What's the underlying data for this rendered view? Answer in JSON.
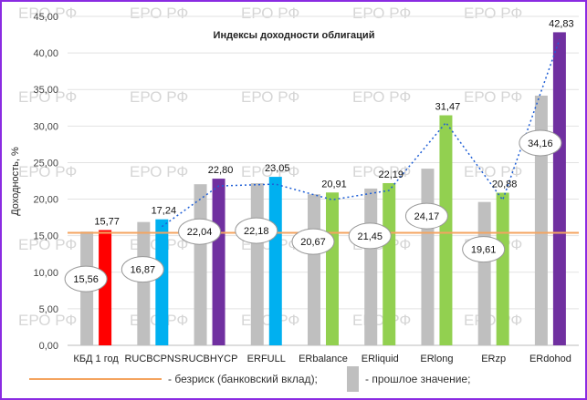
{
  "chart_data": {
    "type": "bar",
    "title": "Индексы доходности облигаций",
    "xlabel": "",
    "ylabel": "Доходность, %",
    "ylim": [
      0,
      45
    ],
    "yticks": [
      "0,00",
      "5,00",
      "10,00",
      "15,00",
      "20,00",
      "25,00",
      "30,00",
      "35,00",
      "40,00",
      "45,00"
    ],
    "categories": [
      "КБД 1 год",
      "RUCBCPNS",
      "RUCBHYCP",
      "ERFULL",
      "ERbalance",
      "ERliquid",
      "ERlong",
      "ERzp",
      "ERdohod"
    ],
    "series": [
      {
        "name": "прошлое значение",
        "values": [
          15.56,
          16.87,
          22.04,
          22.18,
          20.67,
          21.45,
          24.17,
          19.61,
          34.16
        ],
        "labels": [
          "15,56",
          "16,87",
          "22,04",
          "22,18",
          "20,67",
          "21,45",
          "24,17",
          "19,61",
          "34,16"
        ],
        "color": "#bfbfbf"
      },
      {
        "name": "",
        "values": [
          15.77,
          17.24,
          22.8,
          23.05,
          20.91,
          22.19,
          31.47,
          20.88,
          42.83
        ],
        "labels": [
          "15,77",
          "17,24",
          "22,80",
          "23,05",
          "20,91",
          "22,19",
          "31,47",
          "20,88",
          "42,83"
        ],
        "colors": [
          "#ff0000",
          "#00b0f0",
          "#7030a0",
          "#00b0f0",
          "#92d050",
          "#92d050",
          "#92d050",
          "#92d050",
          "#7030a0"
        ]
      }
    ],
    "risk_free_value": 15.4,
    "trendline": "dotted-blue",
    "grid": true,
    "legend": [
      {
        "label": "- безриск (банковский вклад);",
        "type": "line",
        "color": "#f4a460"
      },
      {
        "label": "- прошлое значение;",
        "type": "box",
        "color": "#bfbfbf"
      }
    ],
    "watermark": "ЕРО РФ"
  }
}
